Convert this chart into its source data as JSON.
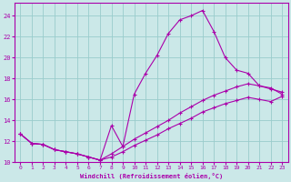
{
  "xlabel": "Windchill (Refroidissement éolien,°C)",
  "bg_color": "#cbe8e8",
  "line_color": "#aa00aa",
  "grid_color": "#99cccc",
  "xlim": [
    -0.5,
    23.5
  ],
  "ylim": [
    10.0,
    25.2
  ],
  "yticks": [
    10,
    12,
    14,
    16,
    18,
    20,
    22,
    24
  ],
  "xticks": [
    0,
    1,
    2,
    3,
    4,
    5,
    6,
    7,
    8,
    9,
    10,
    11,
    12,
    13,
    14,
    15,
    16,
    17,
    18,
    19,
    20,
    21,
    22,
    23
  ],
  "line1_x": [
    0,
    1,
    2,
    3,
    4,
    5,
    6,
    7,
    8,
    9,
    10,
    11,
    12,
    13,
    14,
    15,
    16,
    17,
    18,
    19,
    20,
    21,
    22,
    23
  ],
  "line1_y": [
    12.7,
    11.8,
    11.7,
    11.2,
    11.0,
    10.8,
    10.5,
    10.2,
    13.5,
    11.5,
    16.5,
    18.5,
    20.2,
    22.3,
    23.6,
    24.0,
    24.5,
    22.5,
    20.0,
    18.8,
    18.5,
    17.3,
    17.1,
    16.5
  ],
  "line2_x": [
    0,
    1,
    2,
    3,
    4,
    5,
    6,
    7,
    8,
    9,
    10,
    11,
    12,
    13,
    14,
    15,
    16,
    17,
    18,
    19,
    20,
    21,
    22,
    23
  ],
  "line2_y": [
    12.7,
    11.8,
    11.7,
    11.2,
    11.0,
    10.8,
    10.5,
    10.2,
    10.8,
    11.5,
    12.2,
    12.8,
    13.4,
    14.0,
    14.7,
    15.3,
    15.9,
    16.4,
    16.8,
    17.2,
    17.5,
    17.3,
    17.0,
    16.7
  ],
  "line3_x": [
    0,
    1,
    2,
    3,
    4,
    5,
    6,
    7,
    8,
    9,
    10,
    11,
    12,
    13,
    14,
    15,
    16,
    17,
    18,
    19,
    20,
    21,
    22,
    23
  ],
  "line3_y": [
    12.7,
    11.8,
    11.7,
    11.2,
    11.0,
    10.8,
    10.5,
    10.2,
    10.5,
    11.0,
    11.6,
    12.1,
    12.6,
    13.2,
    13.7,
    14.2,
    14.8,
    15.2,
    15.6,
    15.9,
    16.2,
    16.0,
    15.8,
    16.3
  ]
}
